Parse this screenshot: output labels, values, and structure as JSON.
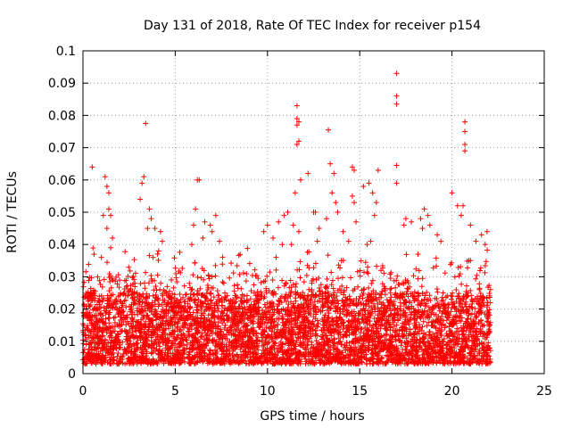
{
  "chart_data": {
    "type": "scatter",
    "title": "Day 131 of 2018, Rate Of TEC Index for receiver p154",
    "xlabel": "GPS time / hours",
    "ylabel": "ROTI / TECUs",
    "xlim": [
      0,
      25
    ],
    "ylim": [
      0,
      0.1
    ],
    "xticks": [
      0,
      5,
      10,
      15,
      20,
      25
    ],
    "yticks": [
      0,
      0.01,
      0.02,
      0.03,
      0.04,
      0.05,
      0.06,
      0.07,
      0.08,
      0.09,
      0.1
    ],
    "xtick_labels": [
      "0",
      "5",
      "10",
      "15",
      "20",
      "25"
    ],
    "ytick_labels": [
      "0",
      "0.01",
      "0.02",
      "0.03",
      "0.04",
      "0.05",
      "0.06",
      "0.07",
      "0.08",
      "0.09",
      "0.1"
    ],
    "grid": true,
    "marker": "+",
    "color": "#ff0000",
    "series": [
      {
        "points": [
          [
            0.5,
            0.064
          ],
          [
            0.6,
            0.037
          ],
          [
            1.2,
            0.061
          ],
          [
            1.3,
            0.058
          ],
          [
            1.4,
            0.056
          ],
          [
            1.4,
            0.051
          ],
          [
            1.5,
            0.049
          ],
          [
            1.1,
            0.049
          ],
          [
            1.3,
            0.045
          ],
          [
            1.6,
            0.042
          ],
          [
            1.5,
            0.039
          ],
          [
            1.0,
            0.036
          ],
          [
            3.1,
            0.054
          ],
          [
            3.2,
            0.059
          ],
          [
            3.3,
            0.061
          ],
          [
            3.4,
            0.0775
          ],
          [
            3.6,
            0.051
          ],
          [
            3.7,
            0.048
          ],
          [
            3.5,
            0.045
          ],
          [
            3.9,
            0.045
          ],
          [
            4.2,
            0.044
          ],
          [
            4.3,
            0.041
          ],
          [
            4.1,
            0.038
          ],
          [
            3.8,
            0.036
          ],
          [
            6.2,
            0.06
          ],
          [
            6.3,
            0.06
          ],
          [
            6.1,
            0.051
          ],
          [
            6.0,
            0.046
          ],
          [
            6.6,
            0.047
          ],
          [
            6.9,
            0.046
          ],
          [
            7.2,
            0.049
          ],
          [
            7.0,
            0.044
          ],
          [
            6.5,
            0.042
          ],
          [
            7.4,
            0.041
          ],
          [
            5.9,
            0.04
          ],
          [
            9.8,
            0.044
          ],
          [
            10.0,
            0.046
          ],
          [
            10.3,
            0.042
          ],
          [
            10.6,
            0.047
          ],
          [
            10.8,
            0.04
          ],
          [
            10.9,
            0.049
          ],
          [
            11.1,
            0.05
          ],
          [
            11.4,
            0.046
          ],
          [
            11.7,
            0.044
          ],
          [
            11.3,
            0.04
          ],
          [
            11.6,
            0.083
          ],
          [
            11.6,
            0.079
          ],
          [
            11.7,
            0.078
          ],
          [
            11.6,
            0.077
          ],
          [
            11.7,
            0.072
          ],
          [
            11.6,
            0.071
          ],
          [
            11.8,
            0.06
          ],
          [
            11.5,
            0.056
          ],
          [
            12.2,
            0.062
          ],
          [
            12.5,
            0.05
          ],
          [
            12.6,
            0.05
          ],
          [
            12.8,
            0.045
          ],
          [
            12.7,
            0.041
          ],
          [
            13.3,
            0.0755
          ],
          [
            13.4,
            0.065
          ],
          [
            13.6,
            0.062
          ],
          [
            13.5,
            0.056
          ],
          [
            13.7,
            0.053
          ],
          [
            13.8,
            0.05
          ],
          [
            13.2,
            0.048
          ],
          [
            14.1,
            0.044
          ],
          [
            14.4,
            0.041
          ],
          [
            14.6,
            0.064
          ],
          [
            14.7,
            0.063
          ],
          [
            14.6,
            0.055
          ],
          [
            14.7,
            0.053
          ],
          [
            14.8,
            0.047
          ],
          [
            15.2,
            0.058
          ],
          [
            15.5,
            0.059
          ],
          [
            15.7,
            0.056
          ],
          [
            15.9,
            0.053
          ],
          [
            15.8,
            0.049
          ],
          [
            16.0,
            0.063
          ],
          [
            15.6,
            0.041
          ],
          [
            15.4,
            0.04
          ],
          [
            17.0,
            0.093
          ],
          [
            17.0,
            0.086
          ],
          [
            17.0,
            0.0835
          ],
          [
            17.0,
            0.0645
          ],
          [
            17.0,
            0.059
          ],
          [
            17.5,
            0.048
          ],
          [
            17.4,
            0.046
          ],
          [
            17.8,
            0.047
          ],
          [
            18.3,
            0.048
          ],
          [
            18.5,
            0.051
          ],
          [
            18.7,
            0.049
          ],
          [
            18.4,
            0.045
          ],
          [
            18.8,
            0.046
          ],
          [
            19.2,
            0.043
          ],
          [
            19.4,
            0.041
          ],
          [
            20.0,
            0.056
          ],
          [
            20.3,
            0.052
          ],
          [
            20.7,
            0.078
          ],
          [
            20.7,
            0.075
          ],
          [
            20.7,
            0.071
          ],
          [
            20.7,
            0.069
          ],
          [
            20.6,
            0.052
          ],
          [
            20.5,
            0.049
          ],
          [
            21.0,
            0.046
          ],
          [
            21.3,
            0.041
          ],
          [
            21.6,
            0.043
          ],
          [
            21.9,
            0.044
          ],
          [
            21.8,
            0.04
          ]
        ]
      }
    ]
  }
}
